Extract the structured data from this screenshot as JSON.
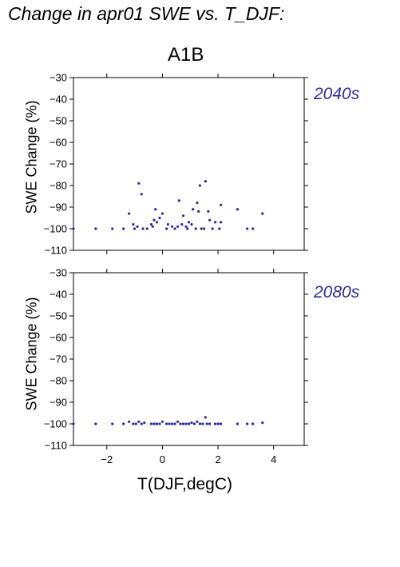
{
  "header": {
    "title": "Change in apr01 SWE vs. T_DJF:"
  },
  "scenario_label": "A1B",
  "x_axis_label": "T(DJF,degC)",
  "y_axis_label": "SWE Change (%)",
  "colors": {
    "points": "#2b2ba8",
    "period_label": "#2b2ba8",
    "axes": "#000000"
  },
  "chart_data": [
    {
      "type": "scatter",
      "title": "A1B",
      "panel_label": "2040s",
      "xlabel": "",
      "ylabel": "SWE Change (%)",
      "xlim": [
        -3.2,
        5.1
      ],
      "ylim": [
        -110,
        -30
      ],
      "xticks": [
        -2,
        0,
        2,
        4
      ],
      "xtick_labels": [
        "",
        "",
        "",
        ""
      ],
      "yticks": [
        -30,
        -40,
        -50,
        -60,
        -70,
        -80,
        -90,
        -100,
        -110
      ],
      "ytick_labels": [
        "−30",
        "−40",
        "−50",
        "−60",
        "−70",
        "−80",
        "−90",
        "−100",
        "−110"
      ],
      "grid": false,
      "points": [
        {
          "x": -3.2,
          "y": -100
        },
        {
          "x": -2.4,
          "y": -100
        },
        {
          "x": -1.8,
          "y": -100
        },
        {
          "x": -1.4,
          "y": -100
        },
        {
          "x": -1.2,
          "y": -93
        },
        {
          "x": -1.05,
          "y": -98
        },
        {
          "x": -1.0,
          "y": -100
        },
        {
          "x": -0.9,
          "y": -99
        },
        {
          "x": -0.85,
          "y": -79
        },
        {
          "x": -0.75,
          "y": -84
        },
        {
          "x": -0.7,
          "y": -100
        },
        {
          "x": -0.55,
          "y": -100
        },
        {
          "x": -0.4,
          "y": -98
        },
        {
          "x": -0.35,
          "y": -99
        },
        {
          "x": -0.3,
          "y": -96
        },
        {
          "x": -0.25,
          "y": -91
        },
        {
          "x": -0.2,
          "y": -97
        },
        {
          "x": -0.1,
          "y": -95
        },
        {
          "x": 0.0,
          "y": -93
        },
        {
          "x": 0.15,
          "y": -100
        },
        {
          "x": 0.2,
          "y": -98
        },
        {
          "x": 0.35,
          "y": -99
        },
        {
          "x": 0.45,
          "y": -100
        },
        {
          "x": 0.55,
          "y": -99
        },
        {
          "x": 0.6,
          "y": -87
        },
        {
          "x": 0.7,
          "y": -98
        },
        {
          "x": 0.75,
          "y": -94
        },
        {
          "x": 0.85,
          "y": -99
        },
        {
          "x": 0.9,
          "y": -100
        },
        {
          "x": 0.95,
          "y": -97
        },
        {
          "x": 1.05,
          "y": -98
        },
        {
          "x": 1.1,
          "y": -91
        },
        {
          "x": 1.2,
          "y": -100
        },
        {
          "x": 1.25,
          "y": -88
        },
        {
          "x": 1.35,
          "y": -80
        },
        {
          "x": 1.3,
          "y": -92
        },
        {
          "x": 1.4,
          "y": -100
        },
        {
          "x": 1.5,
          "y": -100
        },
        {
          "x": 1.55,
          "y": -78
        },
        {
          "x": 1.65,
          "y": -92
        },
        {
          "x": 1.7,
          "y": -96
        },
        {
          "x": 1.8,
          "y": -100
        },
        {
          "x": 1.9,
          "y": -97
        },
        {
          "x": 2.05,
          "y": -100
        },
        {
          "x": 2.1,
          "y": -89
        },
        {
          "x": 2.1,
          "y": -97
        },
        {
          "x": 2.7,
          "y": -91
        },
        {
          "x": 3.05,
          "y": -100
        },
        {
          "x": 3.25,
          "y": -100
        },
        {
          "x": 3.6,
          "y": -93
        }
      ]
    },
    {
      "type": "scatter",
      "title": "",
      "panel_label": "2080s",
      "xlabel": "T(DJF,degC)",
      "ylabel": "SWE Change (%)",
      "xlim": [
        -3.2,
        5.1
      ],
      "ylim": [
        -110,
        -30
      ],
      "xticks": [
        -2,
        0,
        2,
        4
      ],
      "xtick_labels": [
        "−2",
        "0",
        "2",
        "4"
      ],
      "yticks": [
        -30,
        -40,
        -50,
        -60,
        -70,
        -80,
        -90,
        -100,
        -110
      ],
      "ytick_labels": [
        "−30",
        "−40",
        "−50",
        "−60",
        "−70",
        "−80",
        "−90",
        "−100",
        "−110"
      ],
      "grid": false,
      "points": [
        {
          "x": -3.2,
          "y": -100
        },
        {
          "x": -2.4,
          "y": -100
        },
        {
          "x": -1.8,
          "y": -100
        },
        {
          "x": -1.4,
          "y": -100
        },
        {
          "x": -1.2,
          "y": -99
        },
        {
          "x": -1.05,
          "y": -100
        },
        {
          "x": -0.95,
          "y": -100
        },
        {
          "x": -0.85,
          "y": -99
        },
        {
          "x": -0.75,
          "y": -100
        },
        {
          "x": -0.65,
          "y": -99.5
        },
        {
          "x": -0.4,
          "y": -100
        },
        {
          "x": -0.3,
          "y": -100
        },
        {
          "x": -0.2,
          "y": -100
        },
        {
          "x": -0.1,
          "y": -100
        },
        {
          "x": 0.0,
          "y": -99
        },
        {
          "x": 0.15,
          "y": -100
        },
        {
          "x": 0.25,
          "y": -100
        },
        {
          "x": 0.35,
          "y": -100
        },
        {
          "x": 0.45,
          "y": -100
        },
        {
          "x": 0.55,
          "y": -99
        },
        {
          "x": 0.65,
          "y": -100
        },
        {
          "x": 0.75,
          "y": -100
        },
        {
          "x": 0.85,
          "y": -100
        },
        {
          "x": 0.95,
          "y": -100
        },
        {
          "x": 1.05,
          "y": -99.5
        },
        {
          "x": 1.15,
          "y": -100
        },
        {
          "x": 1.25,
          "y": -99
        },
        {
          "x": 1.35,
          "y": -100
        },
        {
          "x": 1.45,
          "y": -100
        },
        {
          "x": 1.55,
          "y": -97
        },
        {
          "x": 1.6,
          "y": -100
        },
        {
          "x": 1.7,
          "y": -100
        },
        {
          "x": 1.9,
          "y": -100
        },
        {
          "x": 2.0,
          "y": -100
        },
        {
          "x": 2.1,
          "y": -100
        },
        {
          "x": 2.7,
          "y": -100
        },
        {
          "x": 3.05,
          "y": -100
        },
        {
          "x": 3.25,
          "y": -100
        },
        {
          "x": 3.6,
          "y": -99.5
        }
      ]
    }
  ]
}
